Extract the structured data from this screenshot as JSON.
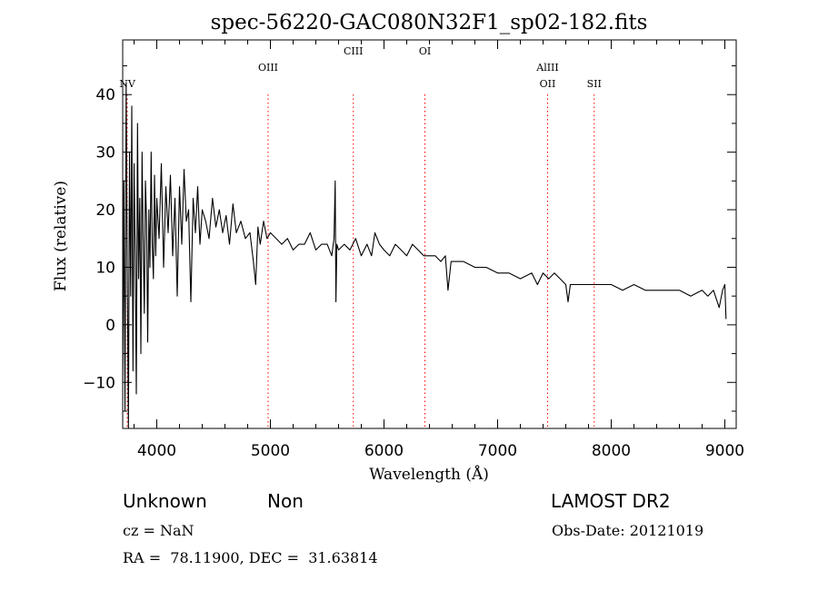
{
  "colors": {
    "axis": "#000000",
    "spectrum": "#000000",
    "line_marker": "#ff0000"
  },
  "chart_data": {
    "type": "line",
    "title": "spec-56220-GAC080N32F1_sp02-182.fits",
    "xlabel": "Wavelength (Å)",
    "ylabel": "Flux (relative)",
    "xlim": [
      3700,
      9100
    ],
    "ylim": [
      -18,
      49.5
    ],
    "x_ticks": [
      4000,
      5000,
      6000,
      7000,
      8000,
      9000
    ],
    "y_ticks": [
      -10,
      0,
      10,
      20,
      30,
      40
    ],
    "grid": false,
    "series": [
      {
        "x": [
          3700,
          3710,
          3720,
          3730,
          3740,
          3750,
          3760,
          3770,
          3780,
          3790,
          3800,
          3810,
          3820,
          3830,
          3840,
          3850,
          3860,
          3870,
          3880,
          3890,
          3900,
          3910,
          3920,
          3930,
          3940,
          3950,
          3960,
          3970,
          3980,
          3990,
          4000,
          4020,
          4040,
          4060,
          4080,
          4100,
          4120,
          4140,
          4160,
          4180,
          4200,
          4220,
          4240,
          4260,
          4280,
          4300,
          4320,
          4340,
          4360,
          4380,
          4400,
          4430,
          4460,
          4490,
          4520,
          4550,
          4580,
          4610,
          4640,
          4670,
          4700,
          4740,
          4780,
          4820,
          4850,
          4870,
          4890,
          4910,
          4940,
          4970,
          5000,
          5050,
          5100,
          5150,
          5200,
          5250,
          5300,
          5350,
          5400,
          5450,
          5500,
          5540,
          5560,
          5570,
          5577,
          5585,
          5600,
          5650,
          5700,
          5750,
          5800,
          5850,
          5890,
          5920,
          5960,
          6000,
          6050,
          6100,
          6150,
          6200,
          6250,
          6300,
          6350,
          6400,
          6450,
          6500,
          6540,
          6563,
          6590,
          6650,
          6700,
          6800,
          6900,
          7000,
          7100,
          7200,
          7300,
          7350,
          7400,
          7450,
          7500,
          7550,
          7600,
          7620,
          7640,
          7700,
          7800,
          7900,
          8000,
          8100,
          8200,
          8300,
          8400,
          8500,
          8600,
          8700,
          8800,
          8850,
          8900,
          8950,
          8980,
          9000,
          9010
        ],
        "values": [
          -10,
          25,
          -15,
          42,
          10,
          -18,
          30,
          5,
          38,
          -8,
          28,
          12,
          -12,
          35,
          8,
          22,
          -5,
          30,
          15,
          2,
          25,
          18,
          -3,
          20,
          10,
          30,
          14,
          8,
          26,
          12,
          22,
          15,
          28,
          10,
          24,
          16,
          26,
          12,
          22,
          5,
          24,
          14,
          27,
          18,
          20,
          4,
          22,
          16,
          24,
          14,
          20,
          18,
          15,
          22,
          17,
          20,
          16,
          19,
          14,
          21,
          16,
          18,
          15,
          16,
          11,
          7,
          17,
          14,
          18,
          15,
          16,
          15,
          14,
          15,
          13,
          14,
          14,
          16,
          13,
          14,
          14,
          12,
          15,
          25,
          4,
          14,
          13,
          14,
          13,
          15,
          12,
          14,
          12,
          16,
          14,
          13,
          12,
          14,
          13,
          12,
          14,
          13,
          12,
          12,
          12,
          11,
          12,
          6,
          11,
          11,
          11,
          10,
          10,
          9,
          9,
          8,
          9,
          7,
          9,
          8,
          9,
          8,
          7,
          4,
          7,
          7,
          7,
          7,
          7,
          6,
          7,
          6,
          6,
          6,
          6,
          5,
          6,
          5,
          6,
          3,
          6,
          7,
          1
        ]
      }
    ],
    "line_markers": [
      {
        "label": "NV",
        "wavelength": 3740,
        "row": 2
      },
      {
        "label": "OIII",
        "wavelength": 4980,
        "row": 1
      },
      {
        "label": "CIII",
        "wavelength": 5730,
        "row": 0
      },
      {
        "label": "OI",
        "wavelength": 6360,
        "row": 0
      },
      {
        "label": "AlIII",
        "wavelength": 7440,
        "row": 1
      },
      {
        "label": "OII",
        "wavelength": 7440,
        "row": 2
      },
      {
        "label": "SII",
        "wavelength": 7850,
        "row": 2
      }
    ]
  },
  "footer": {
    "class_text": "Unknown",
    "subclass_text": "Non",
    "cz_text": "cz = NaN",
    "coords_text": "RA =  78.11900, DEC =  31.63814",
    "survey_text": "LAMOST DR2",
    "obs_date_text": "Obs-Date: 20121019"
  }
}
